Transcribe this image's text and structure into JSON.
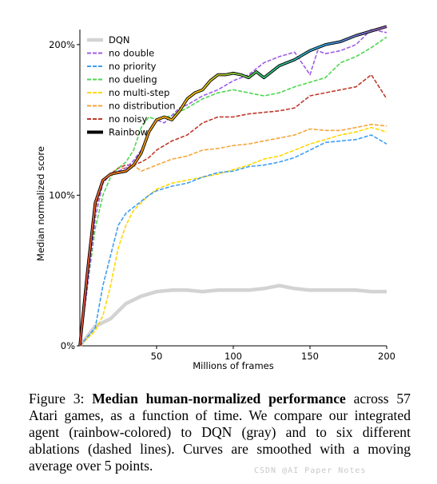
{
  "chart_data": {
    "type": "line",
    "xlabel": "Millions of frames",
    "ylabel": "Median normalized score",
    "xlim": [
      0,
      200
    ],
    "ylim": [
      0,
      210
    ],
    "xticks": [
      50,
      100,
      150,
      200
    ],
    "yticks": [
      0,
      100,
      200
    ],
    "ytick_labels": [
      "0%",
      "100%",
      "200%"
    ],
    "legend_position": "top-left",
    "grid": false,
    "series": [
      {
        "name": "DQN",
        "color": "#d3d3d3",
        "style": "solid",
        "x": [
          0,
          10,
          20,
          30,
          40,
          50,
          60,
          70,
          80,
          90,
          100,
          110,
          120,
          130,
          140,
          150,
          160,
          170,
          180,
          190,
          200
        ],
        "y": [
          0,
          13,
          18,
          28,
          33,
          36,
          37,
          37,
          36,
          37,
          37,
          37,
          38,
          40,
          38,
          37,
          37,
          37,
          37,
          36,
          36
        ]
      },
      {
        "name": "no double",
        "color": "#9e5ce8",
        "style": "dashed",
        "x": [
          0,
          5,
          10,
          15,
          20,
          25,
          30,
          35,
          40,
          45,
          50,
          55,
          60,
          65,
          70,
          80,
          90,
          100,
          110,
          120,
          130,
          140,
          150,
          155,
          160,
          170,
          180,
          190,
          200
        ],
        "y": [
          0,
          40,
          85,
          108,
          114,
          116,
          118,
          123,
          130,
          142,
          150,
          148,
          153,
          158,
          160,
          166,
          170,
          176,
          180,
          188,
          192,
          195,
          180,
          196,
          194,
          196,
          200,
          210,
          208
        ]
      },
      {
        "name": "no priority",
        "color": "#3f9ef2",
        "style": "dashed",
        "x": [
          0,
          10,
          15,
          20,
          25,
          30,
          35,
          40,
          45,
          50,
          60,
          70,
          80,
          90,
          100,
          110,
          120,
          130,
          140,
          150,
          160,
          170,
          180,
          190,
          200
        ],
        "y": [
          0,
          12,
          40,
          60,
          80,
          88,
          92,
          96,
          100,
          103,
          106,
          108,
          112,
          115,
          116,
          119,
          120,
          122,
          125,
          130,
          135,
          136,
          137,
          140,
          134
        ]
      },
      {
        "name": "no dueling",
        "color": "#4fd64f",
        "style": "dashed",
        "x": [
          0,
          5,
          10,
          15,
          20,
          25,
          30,
          35,
          40,
          45,
          50,
          60,
          70,
          80,
          90,
          100,
          110,
          120,
          130,
          140,
          150,
          160,
          170,
          180,
          190,
          200
        ],
        "y": [
          0,
          40,
          78,
          100,
          112,
          118,
          122,
          130,
          145,
          152,
          150,
          153,
          158,
          164,
          168,
          170,
          168,
          166,
          168,
          172,
          175,
          178,
          188,
          192,
          198,
          205
        ]
      },
      {
        "name": "no multi-step",
        "color": "#ffd700",
        "style": "dashed",
        "x": [
          0,
          10,
          15,
          20,
          25,
          30,
          35,
          40,
          45,
          50,
          60,
          70,
          80,
          90,
          100,
          110,
          120,
          130,
          140,
          150,
          160,
          170,
          180,
          190,
          200
        ],
        "y": [
          0,
          10,
          20,
          40,
          65,
          80,
          90,
          95,
          100,
          104,
          108,
          110,
          112,
          114,
          117,
          120,
          124,
          126,
          130,
          134,
          137,
          140,
          142,
          145,
          142
        ]
      },
      {
        "name": "no distribution",
        "color": "#f5a53b",
        "style": "dashed",
        "x": [
          0,
          5,
          10,
          15,
          20,
          25,
          30,
          35,
          40,
          45,
          50,
          60,
          70,
          80,
          90,
          100,
          110,
          120,
          130,
          140,
          150,
          160,
          170,
          180,
          190,
          200
        ],
        "y": [
          0,
          50,
          90,
          110,
          114,
          118,
          118,
          120,
          116,
          118,
          120,
          124,
          126,
          130,
          131,
          133,
          134,
          136,
          138,
          140,
          144,
          143,
          143,
          145,
          147,
          146
        ]
      },
      {
        "name": "no noisy",
        "color": "#c0392b",
        "style": "dashed",
        "x": [
          0,
          5,
          10,
          15,
          20,
          25,
          30,
          35,
          40,
          45,
          50,
          60,
          70,
          80,
          90,
          100,
          110,
          120,
          130,
          140,
          150,
          160,
          170,
          180,
          190,
          200
        ],
        "y": [
          0,
          50,
          92,
          108,
          114,
          118,
          120,
          120,
          122,
          125,
          130,
          136,
          140,
          148,
          152,
          152,
          154,
          155,
          156,
          158,
          166,
          168,
          170,
          172,
          180,
          164
        ]
      },
      {
        "name": "Rainbow",
        "color": "rainbow",
        "style": "solid",
        "x": [
          0,
          5,
          10,
          15,
          20,
          25,
          30,
          35,
          40,
          45,
          50,
          55,
          60,
          65,
          70,
          75,
          80,
          85,
          90,
          95,
          100,
          105,
          110,
          115,
          120,
          125,
          130,
          140,
          150,
          160,
          170,
          180,
          190,
          200
        ],
        "y": [
          0,
          50,
          95,
          110,
          114,
          115,
          116,
          120,
          128,
          142,
          150,
          152,
          150,
          156,
          164,
          168,
          170,
          176,
          180,
          180,
          181,
          180,
          178,
          182,
          178,
          182,
          186,
          190,
          196,
          200,
          202,
          206,
          209,
          212
        ]
      }
    ]
  },
  "caption": {
    "label": "Figure 3:",
    "title_bold": "Median human-normalized performance",
    "text": "across 57 Atari games, as a function of time. We compare our integrated agent (rainbow-colored) to DQN (gray) and to six different ablations (dashed lines). Curves are smoothed with a moving average over 5 points."
  },
  "watermark": "CSDN @AI Paper Notes"
}
